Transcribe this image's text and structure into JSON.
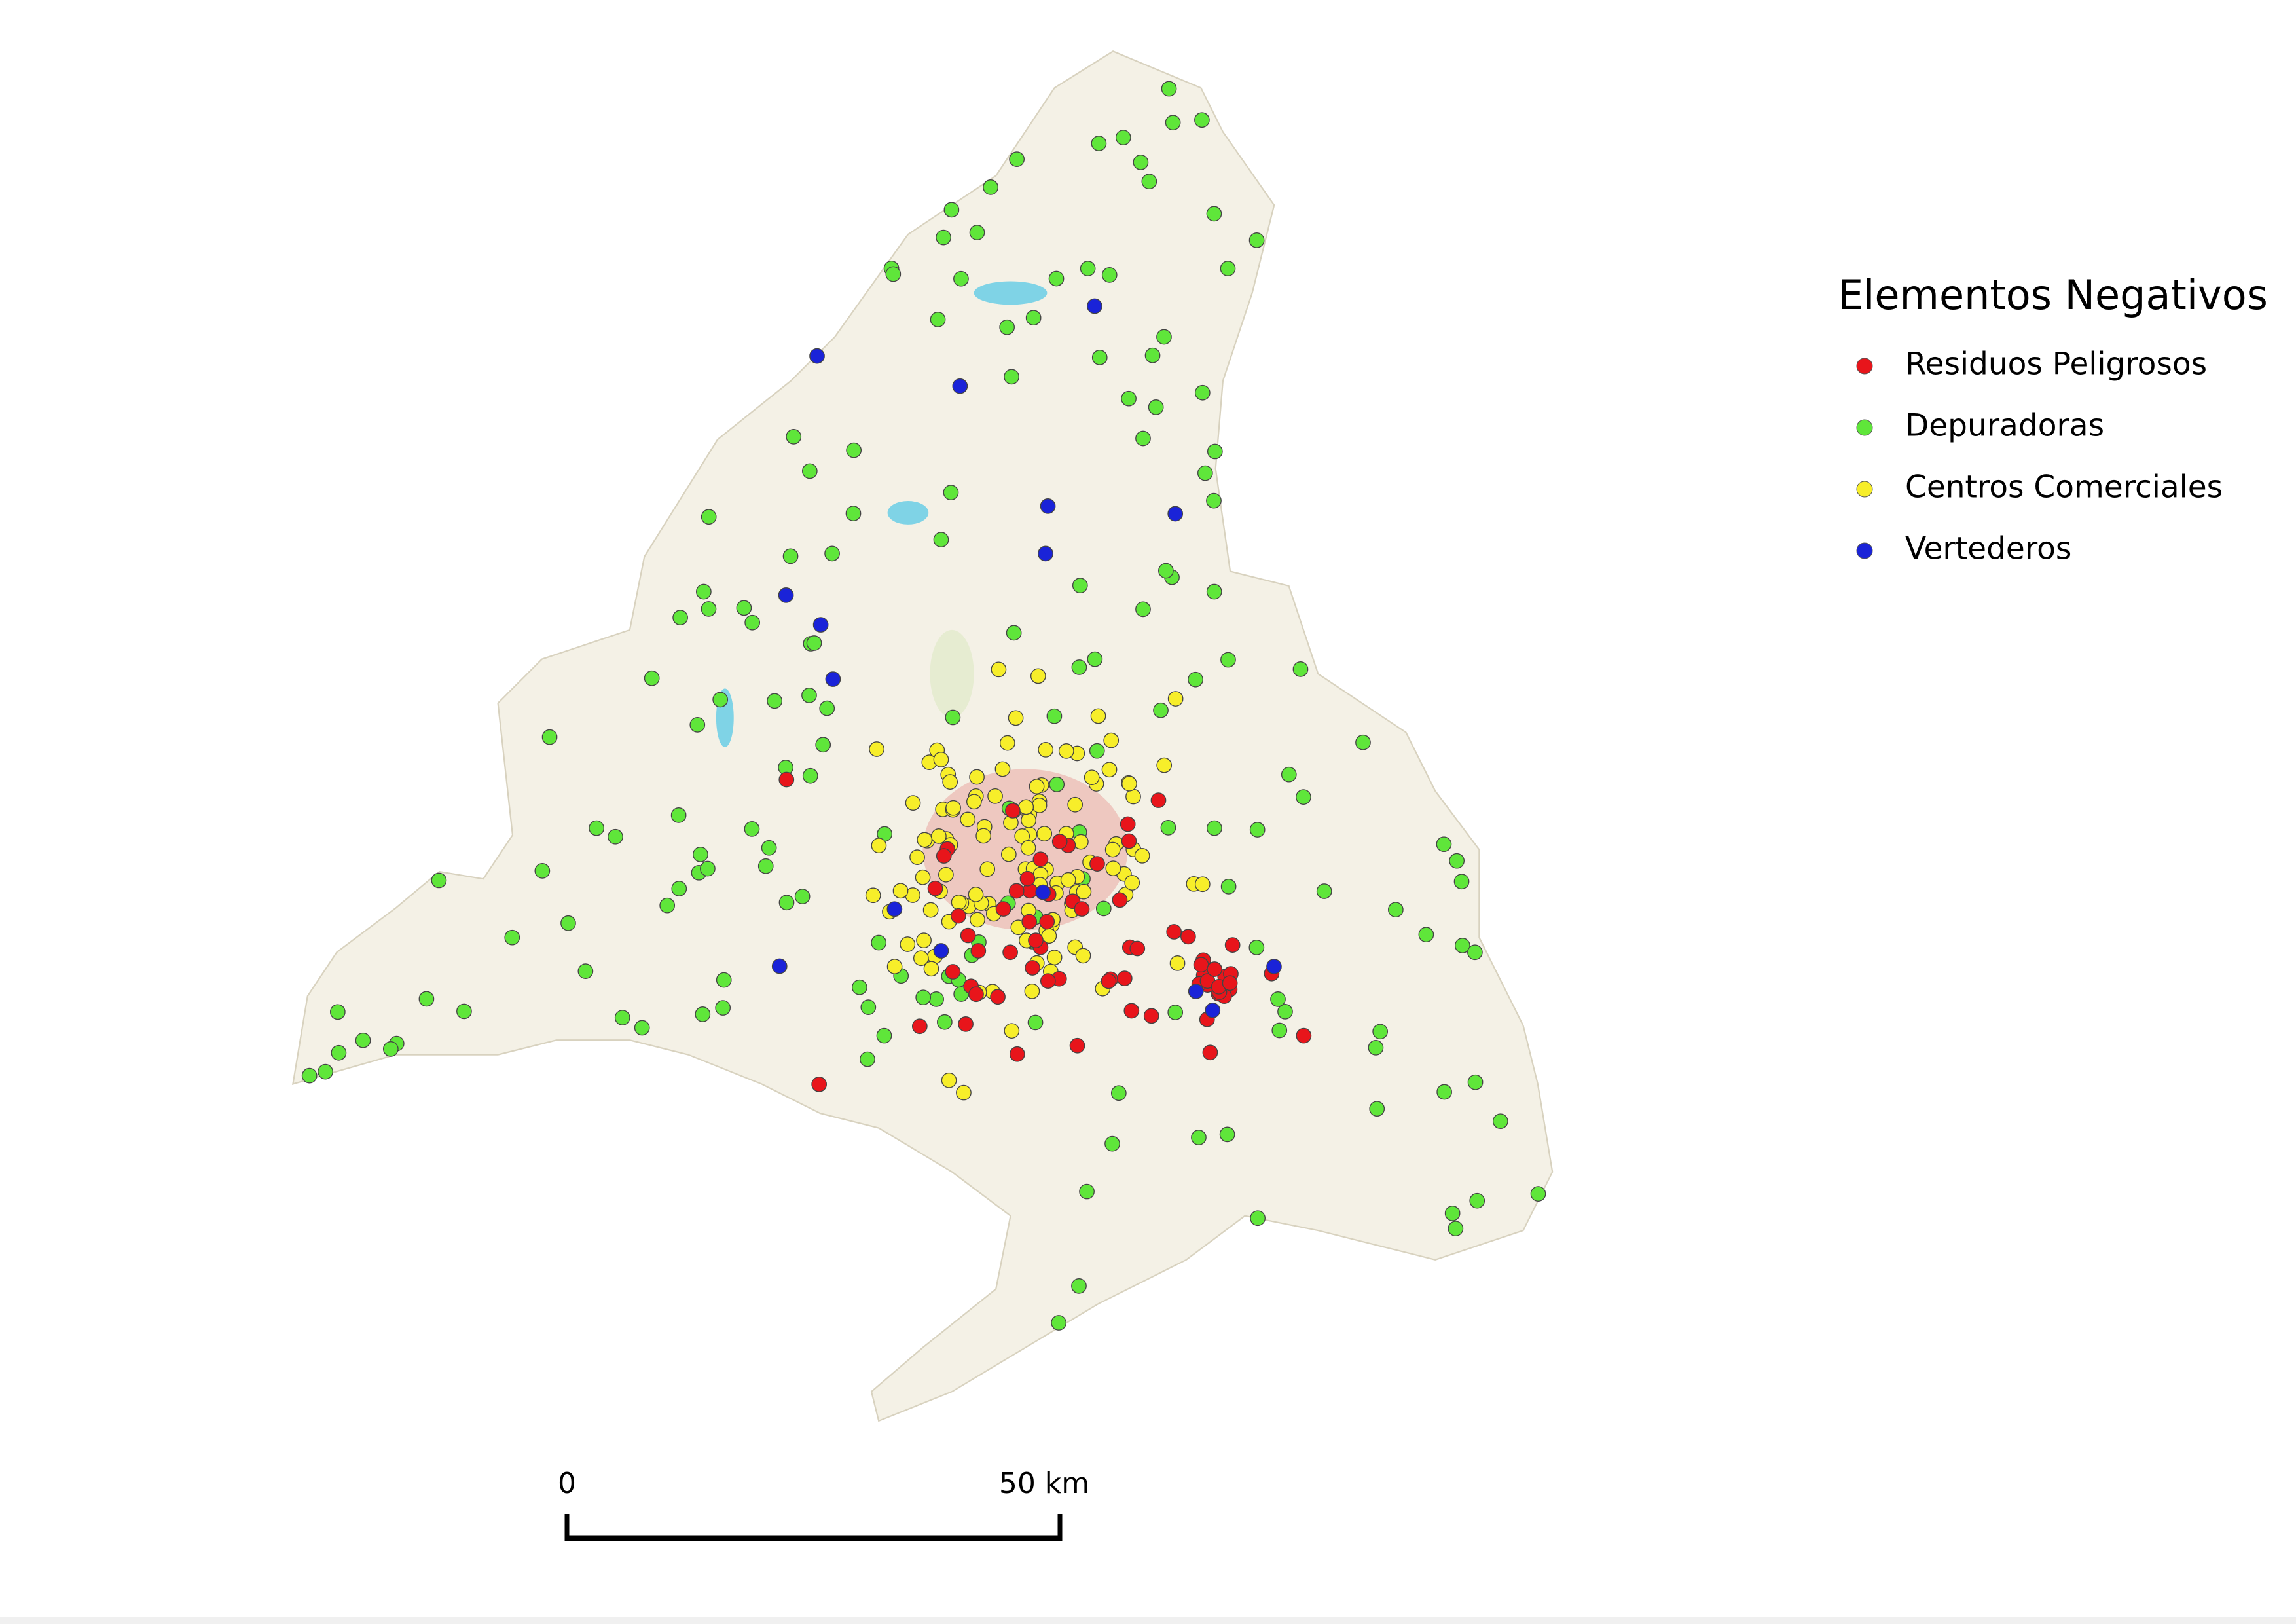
{
  "legend": {
    "title": "Elementos Negativos",
    "items": [
      "Residuos Peligrosos",
      "Depuradoras",
      "Centros Comerciales",
      "Vertederos"
    ]
  },
  "scale_bar": {
    "start_label": "0",
    "end_label": "50 km"
  }
}
